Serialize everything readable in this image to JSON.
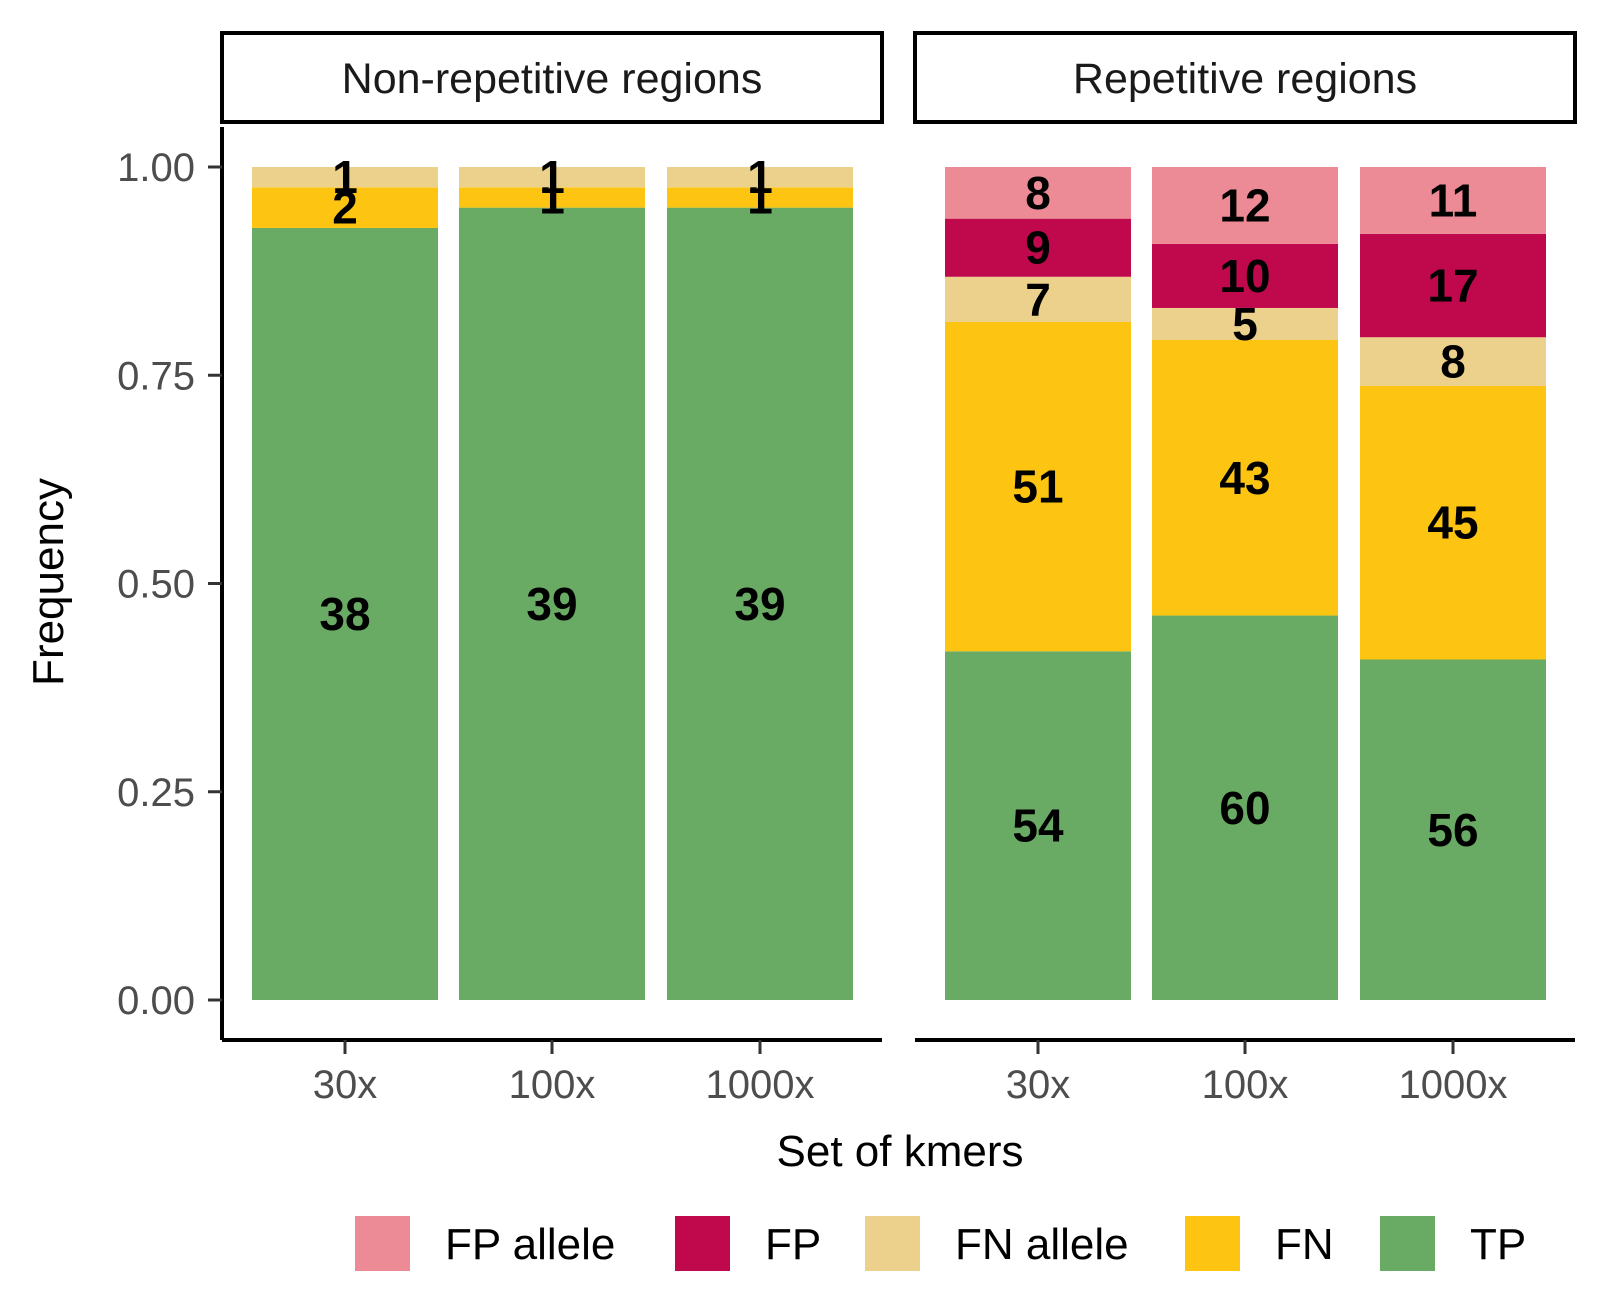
{
  "chart_data": {
    "type": "bar",
    "stacked": true,
    "xlabel": "Set of kmers",
    "ylabel": "Frequency",
    "ylim": [
      0,
      1
    ],
    "yticks": [
      "0.00",
      "0.25",
      "0.50",
      "0.75",
      "1.00"
    ],
    "ytick_values": [
      0,
      0.25,
      0.5,
      0.75,
      1.0
    ],
    "grid": false,
    "legend_position": "bottom",
    "legend": [
      "FP allele",
      "FP",
      "FN allele",
      "FN",
      "TP"
    ],
    "colors": {
      "FP allele": "#ec8b95",
      "FP": "#c0084d",
      "FN allele": "#ebd18b",
      "FN": "#fdc511",
      "TP": "#69ab64"
    },
    "stack_order": [
      "TP",
      "FN",
      "FN allele",
      "FP",
      "FP allele"
    ],
    "panels": [
      {
        "title": "Non-repetitive regions",
        "categories": [
          "30x",
          "100x",
          "1000x"
        ],
        "counts": {
          "TP": [
            38,
            39,
            39
          ],
          "FN": [
            2,
            1,
            1
          ],
          "FN allele": [
            1,
            1,
            1
          ],
          "FP": [
            0,
            0,
            0
          ],
          "FP allele": [
            0,
            0,
            0
          ]
        }
      },
      {
        "title": "Repetitive regions",
        "categories": [
          "30x",
          "100x",
          "1000x"
        ],
        "counts": {
          "TP": [
            54,
            60,
            56
          ],
          "FN": [
            51,
            43,
            45
          ],
          "FN allele": [
            7,
            5,
            8
          ],
          "FP": [
            9,
            10,
            17
          ],
          "FP allele": [
            8,
            12,
            11
          ]
        }
      }
    ]
  }
}
